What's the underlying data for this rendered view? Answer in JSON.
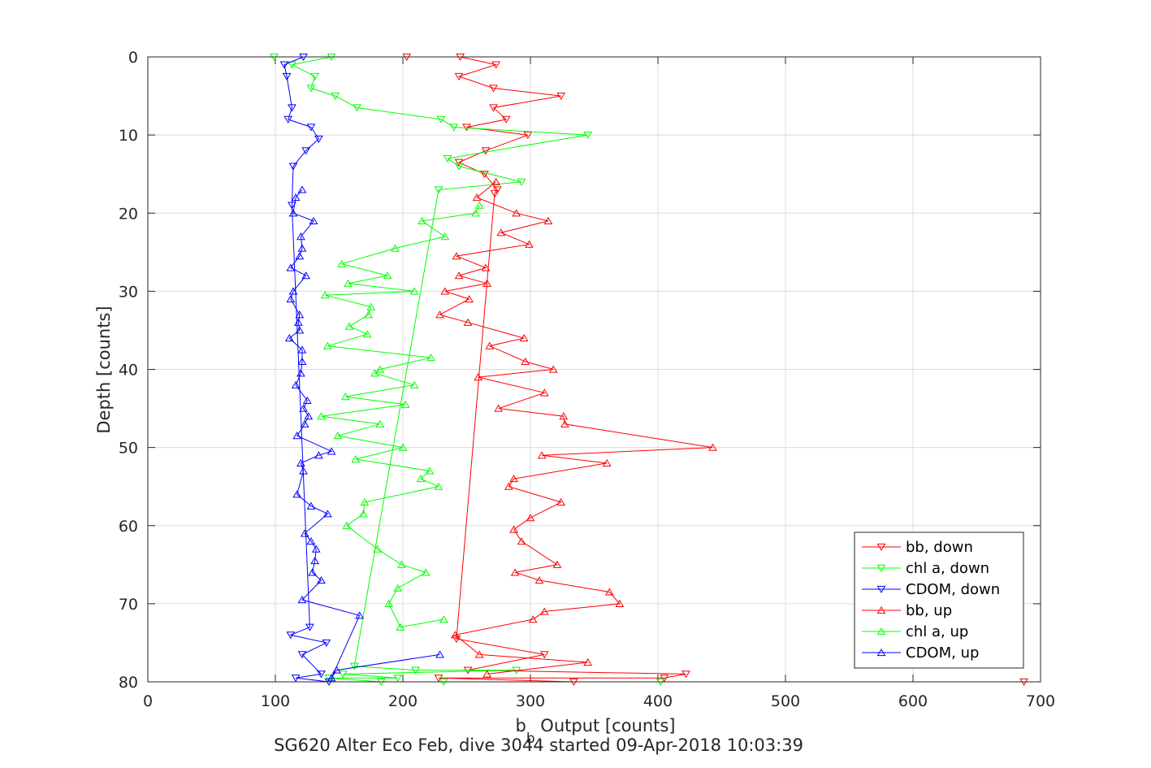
{
  "chart_data": {
    "type": "line",
    "xlabel_main": "b",
    "xlabel_sub": "b",
    "xlabel_rest": " Output [counts]",
    "ylabel": "Depth [counts]",
    "caption": "SG620 Alter Eco Feb, dive 3044 started 09-Apr-2018 10:03:39",
    "xlim": [
      0,
      700
    ],
    "ylim": [
      0,
      80
    ],
    "y_reversed": true,
    "grid": true,
    "legend_position": "lower-right",
    "xticks": [
      "0",
      "100",
      "200",
      "300",
      "400",
      "500",
      "600",
      "700"
    ],
    "yticks": [
      "0",
      "10",
      "20",
      "30",
      "40",
      "50",
      "60",
      "70",
      "80"
    ],
    "series": [
      {
        "name": "bb, down",
        "color": "#ff0000",
        "marker": "triangle-down",
        "x": [
          203,
          245,
          273,
          244,
          271,
          324,
          271,
          281,
          250,
          298,
          265,
          244,
          264,
          274,
          272,
          242,
          311,
          251,
          422,
          405,
          228,
          334,
          687
        ],
        "y": [
          0,
          0,
          1,
          2.5,
          4,
          5,
          6.5,
          8,
          9,
          10,
          12,
          13.5,
          15,
          17,
          17.5,
          74.5,
          76.5,
          78.5,
          79,
          79.5,
          79.5,
          80,
          80
        ]
      },
      {
        "name": "chl a, down",
        "color": "#00ff00",
        "marker": "triangle-down",
        "x": [
          99,
          144,
          113,
          131,
          128,
          147,
          164,
          230,
          240,
          345,
          235,
          244,
          293,
          228,
          162,
          210,
          289,
          153,
          196,
          142,
          183,
          232,
          402
        ],
        "y": [
          0,
          0,
          1,
          2.5,
          4,
          5,
          6.5,
          8,
          9,
          10,
          13,
          14,
          16,
          17,
          78,
          78.5,
          78.5,
          79,
          79.5,
          79.5,
          80,
          80,
          80
        ]
      },
      {
        "name": "CDOM, down",
        "color": "#0000ff",
        "marker": "triangle-down",
        "x": [
          122,
          107,
          109,
          113,
          110,
          128,
          134,
          124,
          114,
          113,
          127,
          112,
          140,
          121,
          136,
          116,
          142
        ],
        "y": [
          0,
          1,
          2.5,
          6.5,
          8,
          9,
          10.5,
          12,
          14,
          19,
          73,
          74,
          75,
          76.5,
          79,
          79.5,
          80
        ]
      },
      {
        "name": "bb, up",
        "color": "#ff0000",
        "marker": "triangle-up",
        "x": [
          266,
          345,
          260,
          241,
          302,
          311,
          370,
          362,
          307,
          288,
          321,
          293,
          287,
          300,
          324,
          283,
          287,
          360,
          309,
          443,
          327,
          326,
          275,
          311,
          259,
          318,
          296,
          268,
          295,
          251,
          229,
          252,
          233,
          266,
          244,
          265,
          242,
          299,
          277,
          314,
          289,
          258,
          273
        ],
        "y": [
          79,
          77.5,
          76.5,
          74,
          72,
          71,
          70,
          68.5,
          67,
          66,
          65,
          62,
          60.5,
          59,
          57,
          55,
          54,
          52,
          51,
          50,
          47,
          46,
          45,
          43,
          41,
          40,
          39,
          37,
          36,
          34,
          33,
          31,
          30,
          29,
          28,
          27,
          25.5,
          24,
          22.5,
          21,
          20,
          18,
          16
        ]
      },
      {
        "name": "chl a, up",
        "color": "#00ff00",
        "marker": "triangle-up",
        "x": [
          232,
          198,
          189,
          196,
          218,
          199,
          180,
          156,
          169,
          170,
          228,
          214,
          221,
          163,
          200,
          149,
          182,
          136,
          202,
          155,
          209,
          178,
          182,
          222,
          141,
          172,
          158,
          173,
          175,
          139,
          209,
          157,
          188,
          152,
          194,
          233,
          215,
          257,
          260
        ],
        "y": [
          72,
          73,
          70,
          68,
          66,
          65,
          63,
          60,
          58.5,
          57,
          55,
          54,
          53,
          51.5,
          50,
          48.5,
          47,
          46,
          44.5,
          43.5,
          42,
          40.5,
          40,
          38.5,
          37,
          35.5,
          34.5,
          33,
          32,
          30.5,
          30,
          29,
          28,
          26.5,
          24.5,
          23,
          21,
          20,
          19
        ]
      },
      {
        "name": "CDOM, up",
        "color": "#0000ff",
        "marker": "triangle-up",
        "x": [
          229,
          148,
          144,
          166,
          121,
          136,
          129,
          131,
          132,
          128,
          123,
          141,
          128,
          117,
          122,
          120,
          134,
          144,
          117,
          123,
          126,
          122,
          125,
          116,
          120,
          121,
          121,
          111,
          119,
          118,
          119,
          112,
          114,
          124,
          112,
          119,
          121,
          120,
          130,
          114,
          116,
          121
        ],
        "y": [
          76.5,
          78.5,
          79.5,
          71.5,
          69.5,
          67,
          66,
          64.5,
          63,
          62,
          61,
          58.5,
          57.5,
          56,
          53,
          52,
          51,
          50.5,
          48.5,
          47,
          46,
          45,
          44,
          42,
          40.5,
          39,
          37.5,
          36,
          35,
          34,
          33,
          31,
          30,
          28,
          27,
          25.5,
          24.5,
          23,
          21,
          20,
          18,
          17
        ]
      }
    ]
  }
}
